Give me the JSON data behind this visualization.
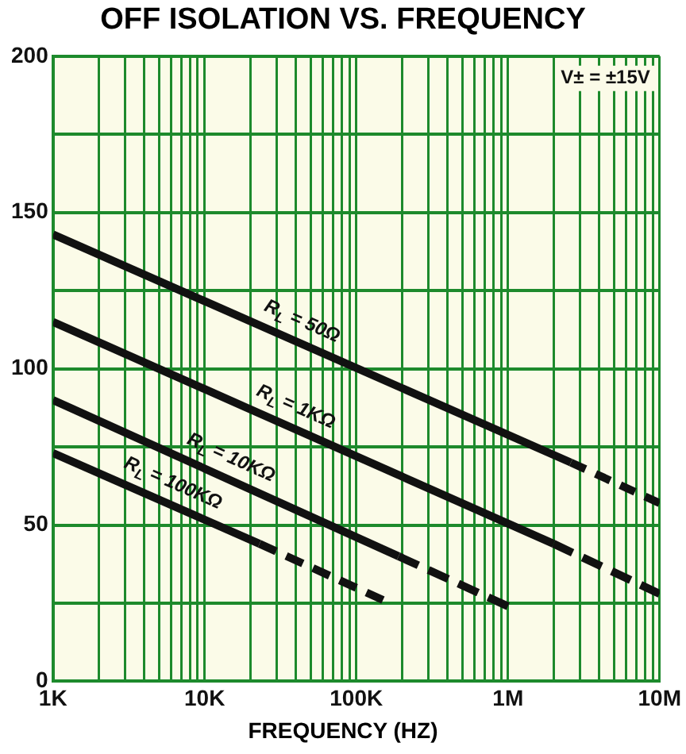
{
  "chart_data": {
    "type": "line",
    "title": "OFF ISOLATION VS. FREQUENCY",
    "xlabel": "FREQUENCY (HZ)",
    "log": "x",
    "grid": true,
    "legend": false,
    "marker": "none",
    "xlim": [
      1000,
      10000000
    ],
    "xticks": [
      {
        "value": 1000,
        "label": "1K"
      },
      {
        "value": 2000,
        "label": null
      },
      {
        "value": 3000,
        "label": null
      },
      {
        "value": 4000,
        "label": null
      },
      {
        "value": 5000,
        "label": null
      },
      {
        "value": 6000,
        "label": null
      },
      {
        "value": 7000,
        "label": null
      },
      {
        "value": 8000,
        "label": null
      },
      {
        "value": 9000,
        "label": null
      },
      {
        "value": 10000,
        "label": "10K"
      },
      {
        "value": 20000,
        "label": null
      },
      {
        "value": 30000,
        "label": null
      },
      {
        "value": 40000,
        "label": null
      },
      {
        "value": 50000,
        "label": null
      },
      {
        "value": 60000,
        "label": null
      },
      {
        "value": 70000,
        "label": null
      },
      {
        "value": 80000,
        "label": null
      },
      {
        "value": 90000,
        "label": null
      },
      {
        "value": 100000,
        "label": "100K"
      },
      {
        "value": 200000,
        "label": null
      },
      {
        "value": 300000,
        "label": null
      },
      {
        "value": 400000,
        "label": null
      },
      {
        "value": 500000,
        "label": null
      },
      {
        "value": 600000,
        "label": null
      },
      {
        "value": 700000,
        "label": null
      },
      {
        "value": 800000,
        "label": null
      },
      {
        "value": 900000,
        "label": null
      },
      {
        "value": 1000000,
        "label": "1M"
      },
      {
        "value": 2000000,
        "label": null
      },
      {
        "value": 3000000,
        "label": null
      },
      {
        "value": 4000000,
        "label": null
      },
      {
        "value": 5000000,
        "label": null
      },
      {
        "value": 6000000,
        "label": null
      },
      {
        "value": 7000000,
        "label": null
      },
      {
        "value": 8000000,
        "label": null
      },
      {
        "value": 9000000,
        "label": null
      },
      {
        "value": 10000000,
        "label": "10M"
      }
    ],
    "ylim": [
      0,
      200
    ],
    "yticks": [
      0,
      {
        "value": 25,
        "label": null
      },
      50,
      {
        "value": 75,
        "label": null
      },
      100,
      {
        "value": 125,
        "label": null
      },
      150,
      {
        "value": 175,
        "label": null
      },
      200
    ],
    "annotations": [
      "V± = ±15V"
    ],
    "series": [
      {
        "name": "R$_{L}$ = 50Ω",
        "color": "#111111",
        "line_style": "solid",
        "x": [
          1000,
          2600000
        ],
        "values": [
          143,
          70
        ]
      },
      {
        "color": "#111111",
        "line_style": "dashed",
        "x": [
          2600000,
          10000000
        ],
        "values": [
          70,
          57
        ]
      },
      {
        "name": "R$_{L}$ = 1KΩ",
        "color": "#111111",
        "line_style": "solid",
        "x": [
          1000,
          2000000
        ],
        "values": [
          115,
          44
        ]
      },
      {
        "color": "#111111",
        "line_style": "dashed",
        "x": [
          2000000,
          10000000
        ],
        "values": [
          44,
          28
        ]
      },
      {
        "name": "R$_{L}$ = 10KΩ",
        "color": "#111111",
        "line_style": "solid",
        "x": [
          1000,
          190000
        ],
        "values": [
          90,
          40
        ]
      },
      {
        "color": "#111111",
        "line_style": "dashed",
        "x": [
          190000,
          1000000
        ],
        "values": [
          40,
          24
        ]
      },
      {
        "name": "R$_{L}$ = 100KΩ",
        "color": "#111111",
        "line_style": "solid",
        "x": [
          1000,
          23000
        ],
        "values": [
          73,
          44
        ]
      },
      {
        "color": "#111111",
        "line_style": "dashed",
        "x": [
          23000,
          150000
        ],
        "values": [
          44,
          26
        ]
      }
    ]
  }
}
